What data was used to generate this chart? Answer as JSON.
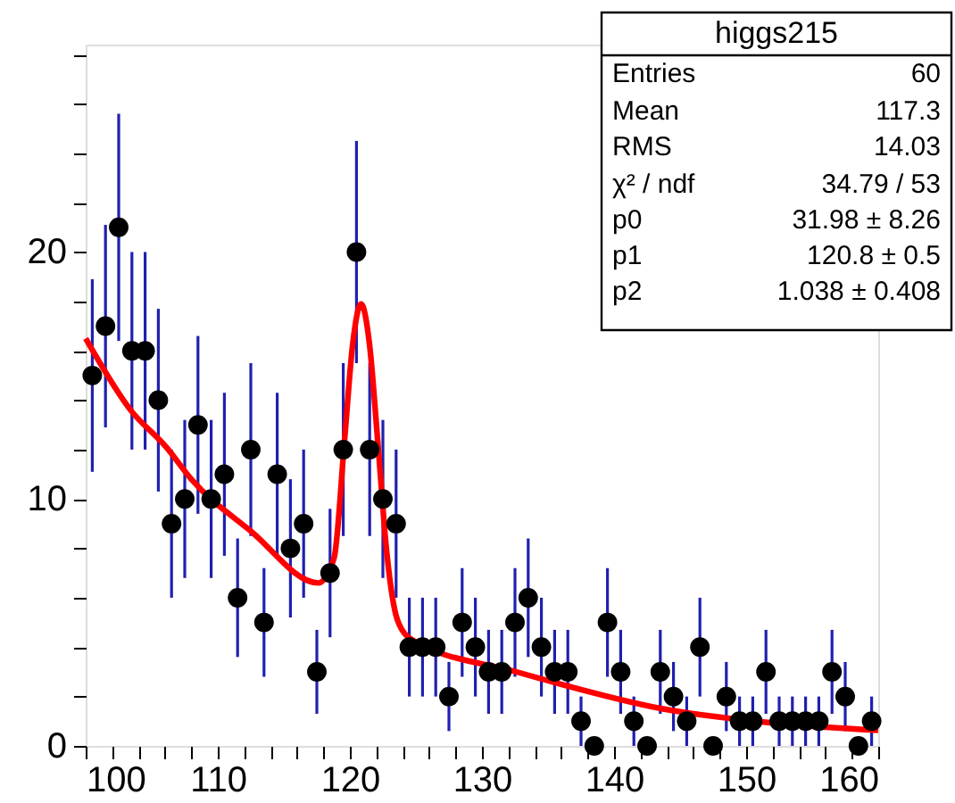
{
  "chart_data": {
    "type": "scatter",
    "grid": false,
    "xlim": [
      100,
      160
    ],
    "ylim": [
      0,
      28.4
    ],
    "xticks": [
      100,
      {
        "value": 102,
        "label": null
      },
      {
        "value": 104,
        "label": null
      },
      {
        "value": 106,
        "label": null
      },
      {
        "value": 108,
        "label": null
      },
      110,
      {
        "value": 112,
        "label": null
      },
      {
        "value": 114,
        "label": null
      },
      {
        "value": 116,
        "label": null
      },
      {
        "value": 118,
        "label": null
      },
      120,
      {
        "value": 122,
        "label": null
      },
      {
        "value": 124,
        "label": null
      },
      {
        "value": 126,
        "label": null
      },
      {
        "value": 128,
        "label": null
      },
      130,
      {
        "value": 132,
        "label": null
      },
      {
        "value": 134,
        "label": null
      },
      {
        "value": 136,
        "label": null
      },
      {
        "value": 138,
        "label": null
      },
      140,
      {
        "value": 142,
        "label": null
      },
      {
        "value": 144,
        "label": null
      },
      {
        "value": 146,
        "label": null
      },
      {
        "value": 148,
        "label": null
      },
      150,
      {
        "value": 152,
        "label": null
      },
      {
        "value": 154,
        "label": null
      },
      {
        "value": 156,
        "label": null
      },
      {
        "value": 158,
        "label": null
      },
      160
    ],
    "yticks": [
      0,
      {
        "value": 2,
        "label": null
      },
      {
        "value": 4,
        "label": null
      },
      {
        "value": 6,
        "label": null
      },
      {
        "value": 8,
        "label": null
      },
      10,
      {
        "value": 12,
        "label": null
      },
      {
        "value": 14,
        "label": null
      },
      {
        "value": 16,
        "label": null
      },
      {
        "value": 18,
        "label": null
      },
      20,
      {
        "value": 22,
        "label": null
      },
      {
        "value": 24,
        "label": null
      },
      {
        "value": 26,
        "label": null
      },
      {
        "value": 28,
        "label": null
      }
    ],
    "annotations": [
      "higgs215",
      "Entries",
      "60",
      "Mean",
      "117.3",
      "RMS",
      "14.03",
      "χ² / ndf",
      "34.79 / 53",
      "p0",
      "31.98 ± 8.26",
      "p1",
      "120.8 ± 0.5",
      "p2",
      "1.038 ± 0.408"
    ],
    "series": [
      {
        "marker": "circle",
        "color": "#000000",
        "x": [
          100.5,
          101.5,
          102.5,
          103.5,
          104.5,
          105.5,
          106.5,
          107.5,
          108.5,
          109.5,
          110.5,
          111.5,
          112.5,
          113.5,
          114.5,
          115.5,
          116.5,
          117.5,
          118.5,
          119.5,
          120.5,
          121.5,
          122.5,
          123.5,
          124.5,
          125.5,
          126.5,
          127.5,
          128.5,
          129.5,
          130.5,
          131.5,
          132.5,
          133.5,
          134.5,
          135.5,
          136.5,
          137.5,
          138.5,
          139.5,
          140.5,
          141.5,
          142.5,
          143.5,
          144.5,
          145.5,
          146.5,
          147.5,
          148.5,
          149.5,
          150.5,
          151.5,
          152.5,
          153.5,
          154.5,
          155.5,
          156.5,
          157.5,
          158.5,
          159.5
        ],
        "values": [
          15,
          17,
          21,
          16,
          16,
          14,
          9,
          10,
          13,
          10,
          11,
          6,
          12,
          5,
          11,
          8,
          9,
          3,
          7,
          12,
          20,
          12,
          10,
          9,
          4,
          4,
          4,
          2,
          5,
          4,
          3,
          3,
          5,
          6,
          4,
          3,
          3,
          1,
          0,
          5,
          3,
          1,
          0,
          3,
          2,
          1,
          4,
          0,
          2,
          1,
          1,
          3,
          1,
          1,
          1,
          1,
          3,
          2,
          0,
          1
        ],
        "errors": [
          3.9,
          4.1,
          4.6,
          4,
          4,
          3.7,
          3,
          3.2,
          3.6,
          3.2,
          3.3,
          2.4,
          3.5,
          2.2,
          3.3,
          2.8,
          3,
          1.7,
          2.6,
          3.5,
          4.5,
          3.5,
          3.2,
          3,
          2,
          2,
          2,
          1.4,
          2.2,
          2,
          1.7,
          1.7,
          2.2,
          2.4,
          2,
          1.7,
          1.7,
          1,
          null,
          2.2,
          1.7,
          1,
          null,
          1.7,
          1.4,
          1,
          2,
          null,
          1.4,
          1,
          1,
          1.7,
          1,
          1,
          1,
          1,
          1.7,
          1.4,
          null,
          1
        ]
      },
      {
        "type": "line",
        "color": "#ff0000",
        "x": [
          100,
          103.4,
          106.1,
          108,
          112.5,
          117.6,
          118.8,
          119.6,
          120.2,
          120.85,
          121.5,
          122.1,
          122.8,
          123.6,
          124.7,
          132.6,
          134.6,
          143.7,
          151.8,
          160
        ],
        "values": [
          16.5,
          13.6,
          12.1,
          10.8,
          8.7,
          6.6,
          7.6,
          12.4,
          16.2,
          17.9,
          16.2,
          12.4,
          7.8,
          5.1,
          4.3,
          3.0,
          2.7,
          1.5,
          0.94,
          0.63
        ]
      }
    ]
  }
}
